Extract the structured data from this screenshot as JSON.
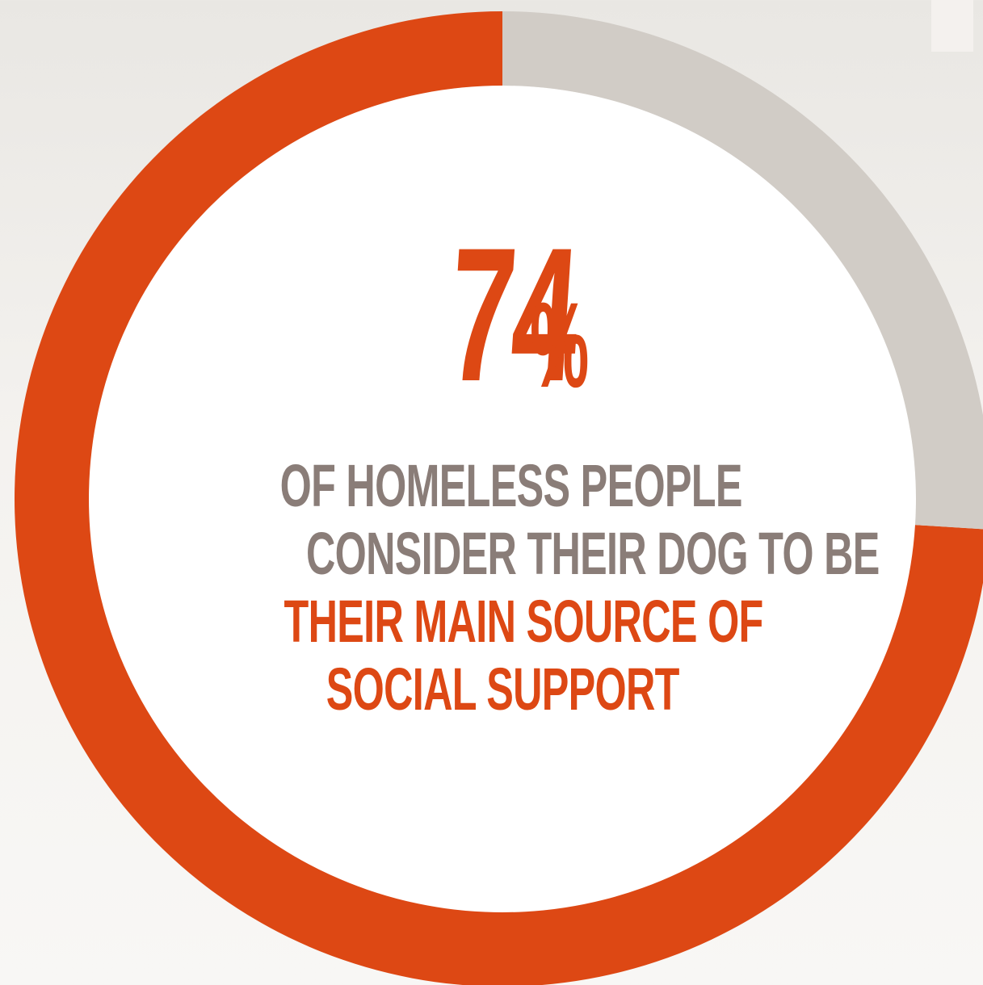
{
  "chart_data": {
    "type": "pie",
    "style": "donut",
    "slices": [
      {
        "value": 74,
        "color": "#dd4814"
      },
      {
        "value": 26,
        "color": "#d1ccc6"
      }
    ],
    "stat": {
      "number": "74",
      "unit": "%"
    },
    "caption": {
      "lines": [
        {
          "text": "OF HOMELESS PEOPLE",
          "color": "#8a7d78"
        },
        {
          "text": "CONSIDER THEIR DOG TO BE",
          "color": "#8a7d78"
        },
        {
          "text": "THEIR MAIN SOURCE OF",
          "color": "#dd4814"
        },
        {
          "text": "SOCIAL SUPPORT",
          "color": "#dd4814"
        }
      ]
    }
  },
  "colors": {
    "accent": "#dd4814",
    "muted_ring": "#d1ccc6",
    "caption_grey": "#8a7d78",
    "center_fill": "#ffffff"
  }
}
